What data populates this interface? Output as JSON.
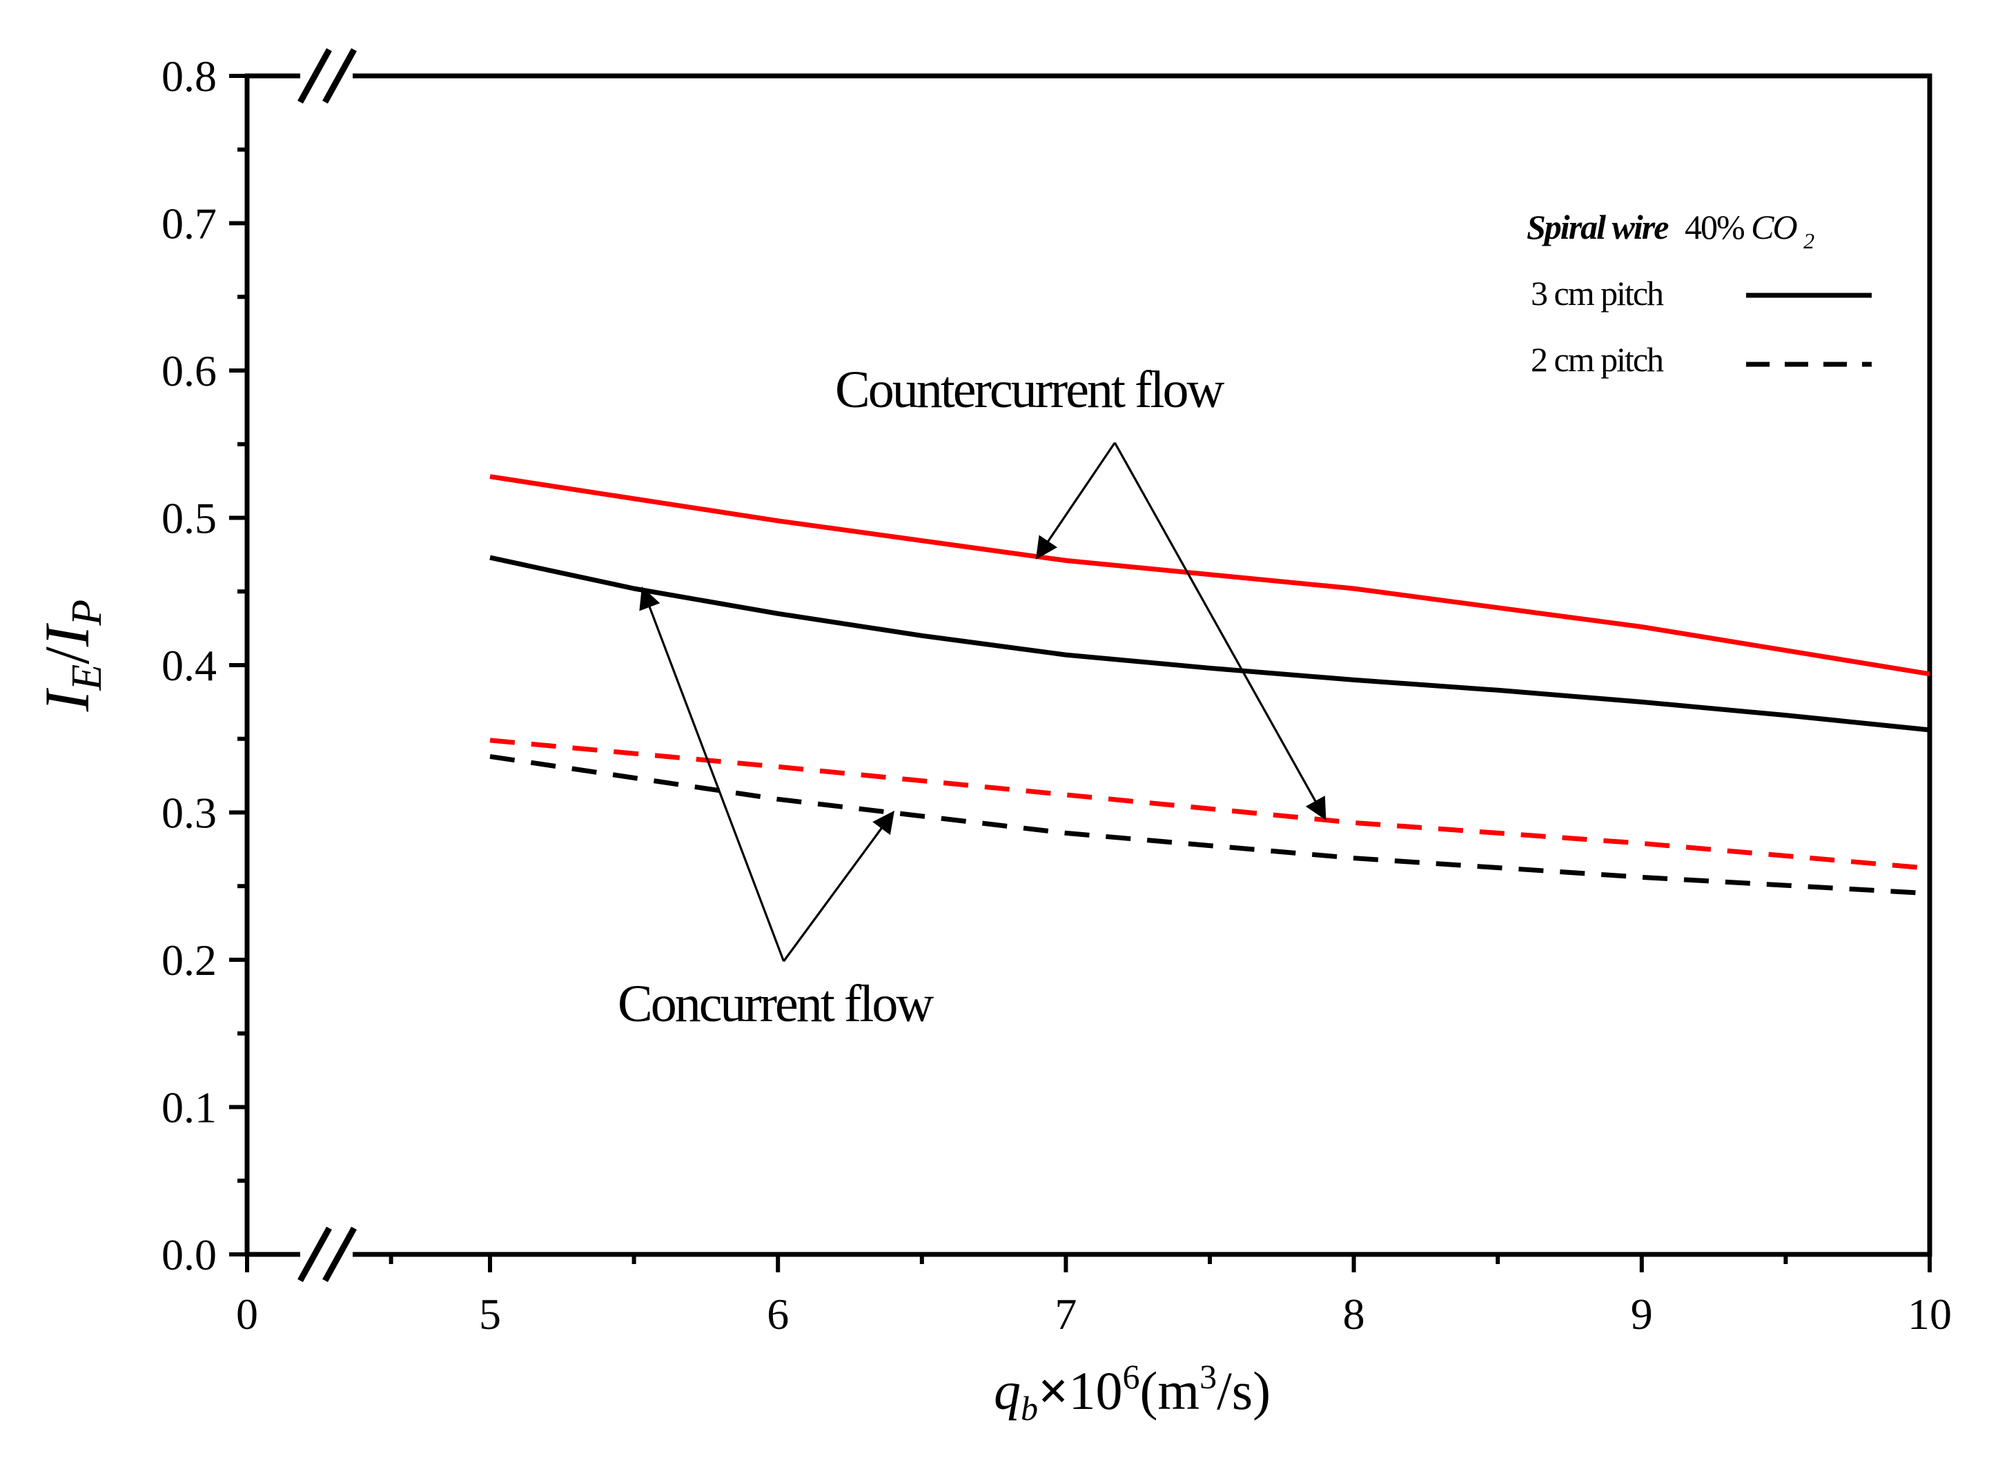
{
  "chart_data": {
    "type": "line",
    "xlabel": {
      "q": "q",
      "b": "b",
      "times": "×",
      "ten": "10",
      "six": "6",
      "unit_open": "(m",
      "three": "3",
      "unit_close": "/s)"
    },
    "ylabel": {
      "i": "I",
      "e": "E",
      "slash": "/",
      "p": "P"
    },
    "xlim": [
      0,
      10
    ],
    "ylim": [
      0.0,
      0.8
    ],
    "x_ticks": [
      "0",
      "5",
      "6",
      "7",
      "8",
      "9",
      "10"
    ],
    "y_ticks": [
      "0.0",
      "0.1",
      "0.2",
      "0.3",
      "0.4",
      "0.5",
      "0.6",
      "0.7",
      "0.8"
    ],
    "axis_break": {
      "from": 0.5,
      "to": 5.0
    },
    "series": [
      {
        "name": "Countercurrent flow, 3 cm pitch",
        "color": "#ff0000",
        "style": "solid",
        "x": [
          5,
          6,
          7,
          8,
          9,
          10
        ],
        "y": [
          0.528,
          0.498,
          0.471,
          0.452,
          0.426,
          0.394
        ]
      },
      {
        "name": "Concurrent flow, 3 cm pitch",
        "color": "#000000",
        "style": "solid",
        "x": [
          5,
          5.5,
          6,
          6.5,
          7,
          7.5,
          8,
          8.5,
          9,
          9.5,
          10
        ],
        "y": [
          0.473,
          0.452,
          0.435,
          0.42,
          0.407,
          0.398,
          0.39,
          0.383,
          0.375,
          0.366,
          0.356
        ]
      },
      {
        "name": "Countercurrent flow, 2 cm pitch",
        "color": "#ff0000",
        "style": "dashed",
        "x": [
          5,
          6,
          7,
          8,
          9,
          10
        ],
        "y": [
          0.349,
          0.331,
          0.312,
          0.293,
          0.279,
          0.262
        ]
      },
      {
        "name": "Concurrent flow, 2 cm pitch",
        "color": "#000000",
        "style": "dashed",
        "x": [
          5,
          6,
          7,
          8,
          9,
          10
        ],
        "y": [
          0.338,
          0.309,
          0.286,
          0.269,
          0.256,
          0.245
        ]
      }
    ],
    "legend": {
      "placement": "top-right",
      "header_italic": "Spiral wire",
      "header_value": "40%",
      "header_co": "CO",
      "header_sub": "2",
      "items": [
        {
          "label": "3 cm pitch",
          "style": "solid"
        },
        {
          "label": "2 cm pitch",
          "style": "dashed"
        }
      ]
    },
    "annotations": [
      {
        "text": "Countercurrent flow",
        "apex": [
          7.17,
          0.551
        ],
        "targets": [
          [
            6.9,
            0.473
          ],
          [
            7.9,
            0.296
          ]
        ]
      },
      {
        "text": "Concurrent flow",
        "apex": [
          6.02,
          0.199
        ],
        "targets": [
          [
            5.53,
            0.452
          ],
          [
            6.4,
            0.3
          ]
        ]
      }
    ]
  }
}
